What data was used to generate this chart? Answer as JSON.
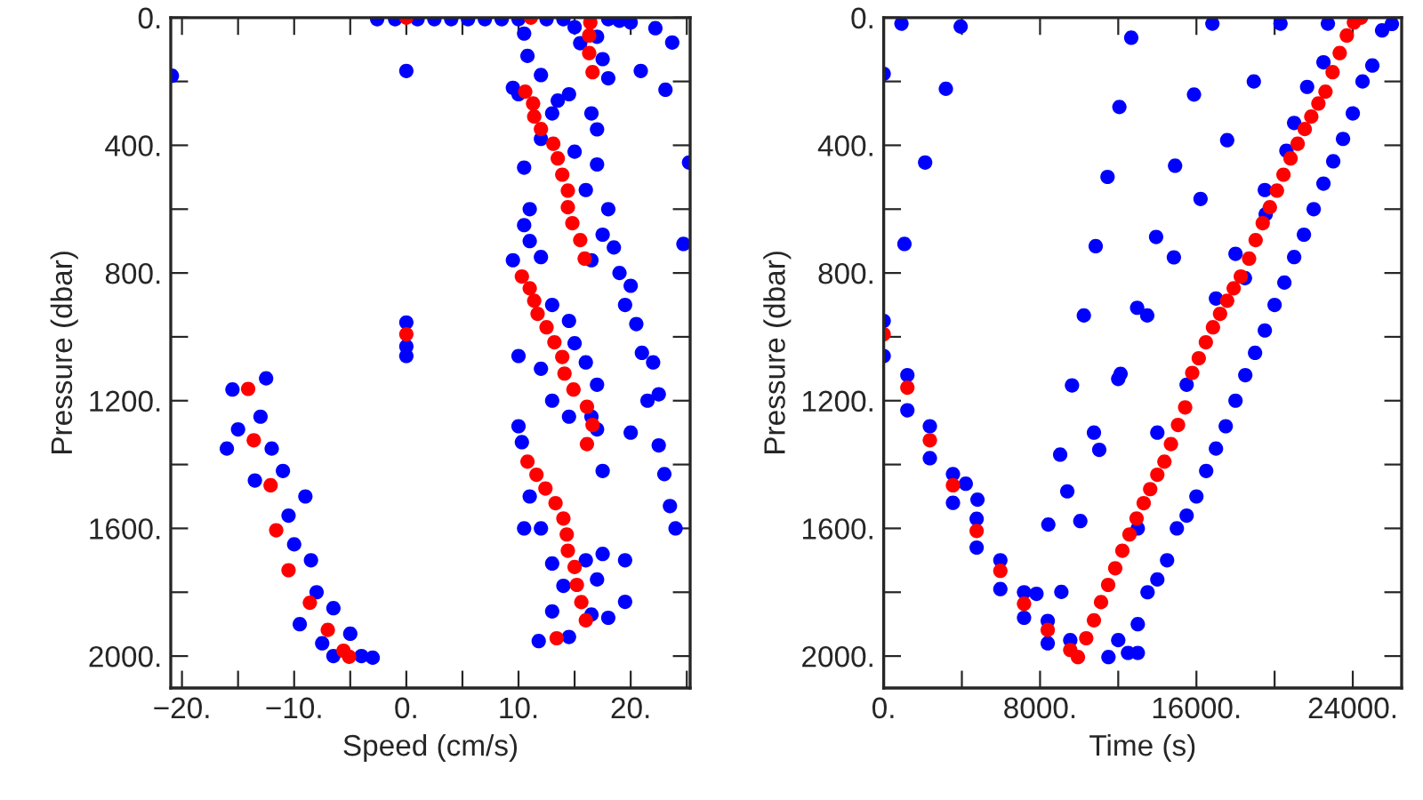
{
  "chart_data": [
    {
      "type": "scatter",
      "xlabel": "Speed (cm/s)",
      "ylabel": "Pressure (dbar)",
      "marker": "circle",
      "grid": false,
      "xlim": [
        -21,
        25.3
      ],
      "ylim": [
        2100,
        0
      ],
      "xticks": [
        {
          "value": -20,
          "label": "−20."
        },
        {
          "value": -15,
          "label": null
        },
        {
          "value": -10,
          "label": "−10."
        },
        {
          "value": -5,
          "label": null
        },
        {
          "value": 0,
          "label": "0."
        },
        {
          "value": 5,
          "label": null
        },
        {
          "value": 10,
          "label": "10."
        },
        {
          "value": 15,
          "label": null
        },
        {
          "value": 20,
          "label": "20."
        },
        {
          "value": 25,
          "label": null
        }
      ],
      "yticks": [
        {
          "value": 0,
          "label": "0."
        },
        {
          "value": 200,
          "label": null
        },
        {
          "value": 400,
          "label": "400."
        },
        {
          "value": 600,
          "label": null
        },
        {
          "value": 800,
          "label": "800."
        },
        {
          "value": 1000,
          "label": null
        },
        {
          "value": 1200,
          "label": "1200."
        },
        {
          "value": 1400,
          "label": null
        },
        {
          "value": 1600,
          "label": "1600."
        },
        {
          "value": 1800,
          "label": null
        },
        {
          "value": 2000,
          "label": "2000."
        }
      ],
      "series": [
        {
          "color": "#0000ff",
          "x": [
            -20.9,
            0,
            25.2,
            24.7,
            22.2,
            23.7,
            20.9,
            23.1,
            -2.6,
            -1,
            1,
            2.5,
            4,
            5.5,
            7,
            8.5,
            10,
            12.5,
            14,
            18,
            19,
            20,
            10.5,
            10.8,
            9.5,
            10,
            12,
            13.5,
            15,
            15.5,
            17,
            17.5,
            18,
            14.5,
            16.5,
            13,
            17,
            12,
            15,
            17,
            16,
            18,
            17.5,
            18.5,
            16.5,
            10.5,
            11,
            19,
            20,
            19.5,
            20.5,
            21,
            22,
            21.5,
            22.5,
            20,
            22.5,
            23,
            23.5,
            24,
            17.5,
            17,
            10.5,
            9.5,
            11,
            12,
            13,
            14.5,
            10,
            15,
            16,
            17,
            16.5,
            14.5,
            12,
            13,
            10,
            10.3,
            11,
            12,
            10.5,
            13,
            14,
            16,
            17,
            17.5,
            16.5,
            18,
            19.5,
            19.5,
            11.8,
            14.5,
            13,
            0,
            0,
            0,
            -16,
            -15.5,
            -12.5,
            -13,
            -12,
            -15,
            -13.5,
            -11,
            -10.5,
            -9,
            -10,
            -8.5,
            -8,
            -9.5,
            -6.5,
            -5,
            -4,
            -3,
            -6.5,
            -7.5
          ],
          "values": [
            182,
            167,
            454,
            709,
            33,
            78,
            167,
            226,
            5,
            5,
            5,
            5,
            5,
            5,
            5,
            5,
            5,
            5,
            5,
            5,
            10,
            15,
            50,
            120,
            220,
            240,
            180,
            260,
            30,
            80,
            60,
            130,
            190,
            240,
            300,
            300,
            350,
            380,
            420,
            460,
            540,
            600,
            680,
            720,
            760,
            470,
            600,
            800,
            840,
            900,
            960,
            1050,
            1080,
            1200,
            1180,
            1300,
            1340,
            1430,
            1530,
            1600,
            1420,
            1290,
            650,
            760,
            700,
            750,
            900,
            950,
            1060,
            1020,
            1080,
            1150,
            1250,
            1250,
            1100,
            1200,
            1280,
            1330,
            1500,
            1600,
            1600,
            1710,
            1780,
            1700,
            1760,
            1680,
            1870,
            1880,
            1700,
            1830,
            1953,
            1940,
            1860,
            955,
            1030,
            1060,
            1350,
            1165,
            1130,
            1250,
            1350,
            1290,
            1450,
            1420,
            1560,
            1500,
            1650,
            1700,
            1800,
            1900,
            1850,
            1930,
            2000,
            2005,
            2000,
            1960
          ]
        },
        {
          "color": "#ff0000",
          "x": [
            0,
            11.1,
            16.4,
            16.3,
            16.3,
            16.6,
            10.6,
            11.3,
            11.4,
            12.0,
            13.1,
            13.5,
            13.9,
            14.4,
            14.4,
            14.8,
            15.5,
            15.9,
            10.3,
            11.0,
            11.4,
            11.7,
            12.5,
            13.2,
            13.9,
            14.1,
            14.9,
            16.1,
            16.6,
            16.1,
            10.8,
            11.6,
            12.4,
            13.3,
            14.0,
            14.3,
            14.4,
            15.0,
            15.2,
            15.6,
            16.0,
            13.4,
            0,
            -14.1,
            -13.6,
            -12.1,
            -11.6,
            -10.5,
            -8.6,
            -7.0,
            -5.6,
            -5.1
          ],
          "values": [
            0,
            0,
            15,
            56,
            111,
            171,
            232,
            269,
            310,
            349,
            395,
            441,
            492,
            542,
            594,
            644,
            697,
            755,
            811,
            848,
            887,
            928,
            970,
            1017,
            1063,
            1115,
            1165,
            1219,
            1276,
            1336,
            1391,
            1432,
            1475,
            1521,
            1569,
            1619,
            1670,
            1721,
            1777,
            1831,
            1888,
            1944,
            992,
            1163,
            1324,
            1465,
            1606,
            1731,
            1833,
            1918,
            1983,
            2002
          ]
        }
      ]
    },
    {
      "type": "scatter",
      "xlabel": "Time (s)",
      "ylabel": "Pressure (dbar)",
      "marker": "circle",
      "grid": false,
      "xlim": [
        0,
        26500
      ],
      "ylim": [
        2100,
        0
      ],
      "xticks": [
        {
          "value": 0,
          "label": "0."
        },
        {
          "value": 4000,
          "label": null
        },
        {
          "value": 8000,
          "label": "8000."
        },
        {
          "value": 12000,
          "label": null
        },
        {
          "value": 16000,
          "label": "16000."
        },
        {
          "value": 20000,
          "label": null
        },
        {
          "value": 24000,
          "label": "24000."
        }
      ],
      "yticks": [
        {
          "value": 0,
          "label": "0."
        },
        {
          "value": 200,
          "label": null
        },
        {
          "value": 400,
          "label": "400."
        },
        {
          "value": 600,
          "label": null
        },
        {
          "value": 800,
          "label": "800."
        },
        {
          "value": 1000,
          "label": null
        },
        {
          "value": 1200,
          "label": "1200."
        },
        {
          "value": 1400,
          "label": null
        },
        {
          "value": 1600,
          "label": "1600."
        },
        {
          "value": 1800,
          "label": null
        },
        {
          "value": 2000,
          "label": "2000."
        }
      ],
      "series": [
        {
          "color": "#0000ff",
          "x": [
            7817,
            8423,
            9029,
            9635,
            10241,
            10847,
            11453,
            12059,
            12665,
            9090,
            10060,
            11029,
            11999,
            12968,
            13938,
            14908,
            15877,
            16817,
            9393,
            10757,
            12120,
            13484,
            14847,
            16211,
            17574,
            18938,
            20301,
            18483,
            19544,
            20604,
            21665,
            22725,
            0,
            0,
            1212,
            1212,
            2363,
            2363,
            3545,
            3545,
            4757,
            4757,
            5969,
            5969,
            7181,
            7181,
            8393,
            8393,
            9545,
            4200,
            4800,
            11500,
            12500,
            13000,
            13500,
            14500,
            15000,
            16000,
            17000,
            18000,
            19000,
            20000,
            21000,
            22000,
            23000,
            24000,
            25000,
            26000,
            25500,
            24500,
            23500,
            22500,
            21500,
            20500,
            19500,
            18500,
            17500,
            16500,
            15500,
            14000,
            12000,
            13000,
            14000,
            15500,
            17000,
            18000,
            19500,
            21000,
            22500,
            13000,
            909,
            3939,
            3182,
            2121,
            1061,
            0
          ],
          "values": [
            1805,
            1588,
            1369,
            1152,
            933,
            716,
            499,
            280,
            63,
            1799,
            1577,
            1354,
            1132,
            909,
            687,
            464,
            241,
            19,
            1484,
            1300,
            1116,
            933,
            751,
            568,
            384,
            200,
            19,
            816,
            616,
            417,
            217,
            19,
            950,
            1060,
            1120,
            1230,
            1280,
            1380,
            1430,
            1520,
            1570,
            1660,
            1700,
            1790,
            1800,
            1880,
            1890,
            1960,
            1950,
            1460,
            1510,
            2003,
            1990,
            1900,
            1800,
            1700,
            1600,
            1500,
            1350,
            1200,
            1050,
            900,
            750,
            600,
            450,
            300,
            150,
            20,
            40,
            200,
            380,
            520,
            680,
            830,
            980,
            1120,
            1280,
            1420,
            1560,
            1760,
            1950,
            1990,
            1300,
            1150,
            880,
            740,
            540,
            330,
            140,
            1600,
            19,
            28,
            223,
            454,
            709,
            176
          ]
        },
        {
          "color": "#ff0000",
          "x": [
            0,
            1212,
            2363,
            3545,
            4757,
            5969,
            7181,
            8393,
            9545,
            9938,
            10363,
            10757,
            11120,
            11484,
            11847,
            12211,
            12575,
            12939,
            13302,
            13635,
            13999,
            14362,
            14696,
            15059,
            15423,
            15786,
            16120,
            16483,
            16847,
            17210,
            17574,
            17907,
            18271,
            18695,
            19030,
            19392,
            19756,
            20119,
            20453,
            20816,
            21180,
            21543,
            21877,
            22240,
            22604,
            22967,
            23331,
            23695,
            24058,
            24422
          ],
          "values": [
            992,
            1159,
            1324,
            1465,
            1608,
            1733,
            1836,
            1918,
            1981,
            2003,
            1944,
            1888,
            1831,
            1777,
            1725,
            1670,
            1619,
            1569,
            1521,
            1477,
            1432,
            1391,
            1336,
            1276,
            1221,
            1113,
            1067,
            1017,
            970,
            928,
            887,
            848,
            811,
            755,
            697,
            644,
            594,
            542,
            492,
            441,
            395,
            349,
            310,
            269,
            232,
            171,
            111,
            56,
            15,
            0
          ]
        }
      ]
    }
  ]
}
